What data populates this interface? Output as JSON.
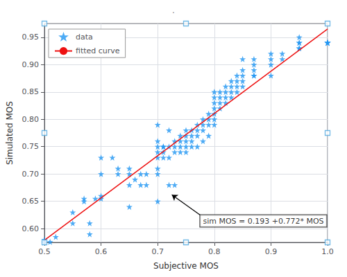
{
  "chart_data": {
    "type": "scatter",
    "title": ".",
    "xlabel": "Subjective MOS",
    "ylabel": "Simulated MOS",
    "xlim": [
      0.5,
      1.0
    ],
    "ylim": [
      0.575,
      0.975
    ],
    "xticks": [
      0.5,
      0.6,
      0.7,
      0.8,
      0.9,
      {
        "value": 1.0,
        "label": "1.0"
      }
    ],
    "yticks": [
      {
        "value": 0.6,
        "label": "0.60"
      },
      0.65,
      {
        "value": 0.7,
        "label": "0.70"
      },
      0.75,
      {
        "value": 0.8,
        "label": "0.80"
      },
      0.85,
      {
        "value": 0.9,
        "label": "0.90"
      },
      0.95
    ],
    "grid": true,
    "legend": "upper left",
    "series": [
      {
        "name": "data",
        "type": "scatter",
        "marker": "star",
        "color": "#2196F3",
        "x": [
          0.5,
          0.5,
          0.51,
          0.52,
          0.55,
          0.55,
          0.57,
          0.57,
          0.58,
          0.58,
          0.59,
          0.6,
          0.6,
          0.6,
          0.6,
          0.62,
          0.63,
          0.63,
          0.65,
          0.65,
          0.65,
          0.65,
          0.66,
          0.67,
          0.67,
          0.68,
          0.68,
          0.7,
          0.7,
          0.7,
          0.7,
          0.7,
          0.7,
          0.7,
          0.7,
          0.71,
          0.71,
          0.71,
          0.71,
          0.72,
          0.72,
          0.72,
          0.72,
          0.73,
          0.73,
          0.73,
          0.73,
          0.74,
          0.74,
          0.74,
          0.74,
          0.75,
          0.75,
          0.75,
          0.75,
          0.75,
          0.76,
          0.76,
          0.76,
          0.76,
          0.77,
          0.77,
          0.77,
          0.77,
          0.78,
          0.78,
          0.78,
          0.78,
          0.79,
          0.79,
          0.79,
          0.79,
          0.8,
          0.8,
          0.8,
          0.8,
          0.8,
          0.8,
          0.8,
          0.81,
          0.81,
          0.81,
          0.81,
          0.82,
          0.82,
          0.82,
          0.82,
          0.83,
          0.83,
          0.83,
          0.83,
          0.84,
          0.84,
          0.84,
          0.84,
          0.85,
          0.85,
          0.85,
          0.85,
          0.85,
          0.87,
          0.87,
          0.87,
          0.87,
          0.87,
          0.9,
          0.9,
          0.9,
          0.9,
          0.92,
          0.92,
          0.95,
          0.95,
          0.95,
          0.95,
          0.95,
          1.0,
          1.0,
          1.0,
          1.0
        ],
        "values": [
          0.58,
          0.575,
          0.576,
          0.585,
          0.61,
          0.63,
          0.65,
          0.655,
          0.59,
          0.61,
          0.655,
          0.655,
          0.66,
          0.7,
          0.73,
          0.73,
          0.7,
          0.71,
          0.64,
          0.68,
          0.7,
          0.71,
          0.69,
          0.68,
          0.7,
          0.68,
          0.7,
          0.65,
          0.7,
          0.71,
          0.73,
          0.74,
          0.75,
          0.76,
          0.79,
          0.73,
          0.74,
          0.75,
          0.75,
          0.73,
          0.75,
          0.78,
          0.68,
          0.74,
          0.75,
          0.76,
          0.68,
          0.75,
          0.76,
          0.77,
          0.74,
          0.75,
          0.76,
          0.77,
          0.78,
          0.74,
          0.76,
          0.77,
          0.78,
          0.75,
          0.77,
          0.78,
          0.79,
          0.75,
          0.78,
          0.79,
          0.8,
          0.76,
          0.79,
          0.8,
          0.81,
          0.77,
          0.8,
          0.81,
          0.82,
          0.83,
          0.84,
          0.85,
          0.79,
          0.82,
          0.83,
          0.84,
          0.85,
          0.83,
          0.84,
          0.85,
          0.86,
          0.84,
          0.85,
          0.86,
          0.87,
          0.85,
          0.86,
          0.87,
          0.88,
          0.86,
          0.87,
          0.88,
          0.89,
          0.91,
          0.88,
          0.89,
          0.9,
          0.91,
          0.88,
          0.88,
          0.9,
          0.91,
          0.92,
          0.91,
          0.92,
          0.93,
          0.94,
          0.95,
          0.94,
          0.93,
          0.94,
          0.94,
          0.94,
          0.94
        ]
      },
      {
        "name": "fitted curve",
        "type": "line",
        "color": "#EE1111",
        "x": [
          0.5,
          1.0
        ],
        "values": [
          0.579,
          0.965
        ]
      },
      {
        "type": "scatter",
        "marker": "square",
        "color": "#4FA8E0",
        "x": [
          0.5,
          0.75,
          1.0,
          0.5,
          1.0,
          0.5,
          0.75,
          1.0
        ],
        "values": [
          0.975,
          0.975,
          0.975,
          0.775,
          0.775,
          0.575,
          0.575,
          0.575
        ]
      }
    ],
    "annotations": [
      {
        "text": "sim MOS = 0.193 +0.772* MOS",
        "xy": [
          0.725,
          0.662
        ],
        "xytext": [
          0.775,
          0.625
        ]
      }
    ]
  }
}
